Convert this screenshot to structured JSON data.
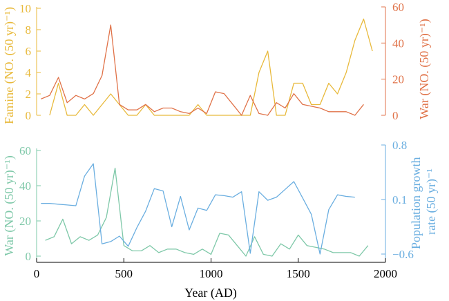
{
  "chart_data": [
    {
      "type": "line",
      "panel": "top",
      "xlim": [
        0,
        2000
      ],
      "left_axis": {
        "label": "Famine (NO. (50 yr)⁻¹)",
        "ylim": [
          0,
          10
        ],
        "ticks": [
          "0",
          "2",
          "4",
          "6",
          "8",
          "10"
        ],
        "tick_values": [
          0,
          2,
          4,
          6,
          8,
          10
        ],
        "color": "#e8b93a"
      },
      "right_axis": {
        "label": "War (NO. (50 yr)⁻¹)",
        "ylim": [
          0,
          60
        ],
        "ticks": [
          "0",
          "20",
          "40",
          "60"
        ],
        "tick_values": [
          0,
          20,
          40,
          60
        ],
        "color": "#e07248"
      },
      "series": [
        {
          "axis": "left",
          "color": "#e8b93a",
          "x": [
            75,
            125,
            175,
            225,
            275,
            325,
            375,
            425,
            475,
            525,
            575,
            625,
            675,
            725,
            775,
            825,
            875,
            925,
            975,
            1025,
            1075,
            1125,
            1175,
            1225,
            1275,
            1325,
            1375,
            1425,
            1475,
            1525,
            1575,
            1625,
            1675,
            1725,
            1775,
            1825,
            1875,
            1925
          ],
          "values": [
            0,
            3,
            0,
            0,
            1,
            0,
            1,
            2,
            1,
            0,
            0,
            1,
            0,
            0,
            0,
            0,
            0,
            1,
            0,
            0,
            0,
            0,
            0,
            0,
            4,
            6,
            0,
            0,
            3,
            3,
            1,
            1,
            3,
            2,
            4,
            7,
            9,
            6
          ]
        },
        {
          "axis": "right",
          "color": "#e07248",
          "x": [
            25,
            75,
            125,
            175,
            225,
            275,
            325,
            375,
            425,
            475,
            525,
            575,
            625,
            675,
            725,
            775,
            825,
            875,
            925,
            975,
            1025,
            1075,
            1125,
            1175,
            1225,
            1275,
            1325,
            1375,
            1425,
            1475,
            1525,
            1575,
            1625,
            1675,
            1725,
            1775,
            1825,
            1875
          ],
          "values": [
            9,
            11,
            21,
            7,
            11,
            9,
            12,
            22,
            50,
            6,
            3,
            3,
            6,
            2,
            4,
            4,
            2,
            1,
            4,
            1,
            13,
            12,
            6,
            0,
            11,
            1,
            0,
            7,
            4,
            12,
            6,
            5,
            4,
            2,
            2,
            2,
            0,
            6
          ]
        }
      ]
    },
    {
      "type": "line",
      "panel": "bottom",
      "xlim": [
        0,
        2000
      ],
      "xlabel": "Year (AD)",
      "xticks": [
        "0",
        "500",
        "1000",
        "1500",
        "2000"
      ],
      "xtick_values": [
        0,
        500,
        1000,
        1500,
        2000
      ],
      "left_axis": {
        "label": "War (NO. (50 yr)⁻¹)",
        "ylim": [
          0,
          60
        ],
        "ticks": [
          "0",
          "20",
          "40",
          "60"
        ],
        "tick_values": [
          0,
          20,
          40,
          60
        ],
        "color": "#7ec8a8"
      },
      "right_axis": {
        "label": "Population growth rate  (50 yr)⁻¹",
        "ylim": [
          -0.6,
          0.8
        ],
        "ticks": [
          "0.8",
          "0.1",
          "−0.6"
        ],
        "tick_values": [
          0.8,
          0.1,
          -0.6
        ],
        "color": "#6aaee0"
      },
      "series": [
        {
          "axis": "left",
          "color": "#7ec8a8",
          "x": [
            50,
            100,
            150,
            200,
            250,
            300,
            350,
            400,
            450,
            500,
            550,
            600,
            650,
            700,
            750,
            800,
            850,
            900,
            950,
            1000,
            1050,
            1100,
            1150,
            1200,
            1250,
            1300,
            1350,
            1400,
            1450,
            1500,
            1550,
            1600,
            1650,
            1700,
            1750,
            1800,
            1850,
            1900
          ],
          "values": [
            9,
            11,
            21,
            7,
            11,
            9,
            12,
            22,
            50,
            6,
            3,
            3,
            6,
            2,
            4,
            4,
            2,
            1,
            4,
            1,
            13,
            12,
            6,
            0,
            11,
            1,
            0,
            7,
            4,
            12,
            6,
            5,
            4,
            2,
            2,
            2,
            0,
            6
          ]
        },
        {
          "axis": "right",
          "color": "#6aaee0",
          "x": [
            25,
            75,
            125,
            175,
            225,
            275,
            325,
            375,
            425,
            475,
            525,
            575,
            625,
            675,
            725,
            775,
            825,
            875,
            925,
            975,
            1025,
            1075,
            1125,
            1175,
            1225,
            1275,
            1325,
            1375,
            1425,
            1475,
            1525,
            1575,
            1625,
            1675,
            1725,
            1775,
            1825
          ],
          "values": [
            0.05,
            0.05,
            0.04,
            0.03,
            0.02,
            0.4,
            0.56,
            -0.47,
            -0.44,
            -0.37,
            -0.5,
            -0.26,
            -0.05,
            0.24,
            0.21,
            -0.25,
            0.14,
            -0.29,
            -0.01,
            -0.04,
            0.16,
            0.15,
            0.13,
            0.2,
            -0.59,
            0.2,
            0.09,
            0.13,
            0.23,
            0.33,
            0.12,
            -0.09,
            -0.6,
            -0.03,
            0.16,
            0.14,
            0.13
          ]
        }
      ]
    }
  ]
}
